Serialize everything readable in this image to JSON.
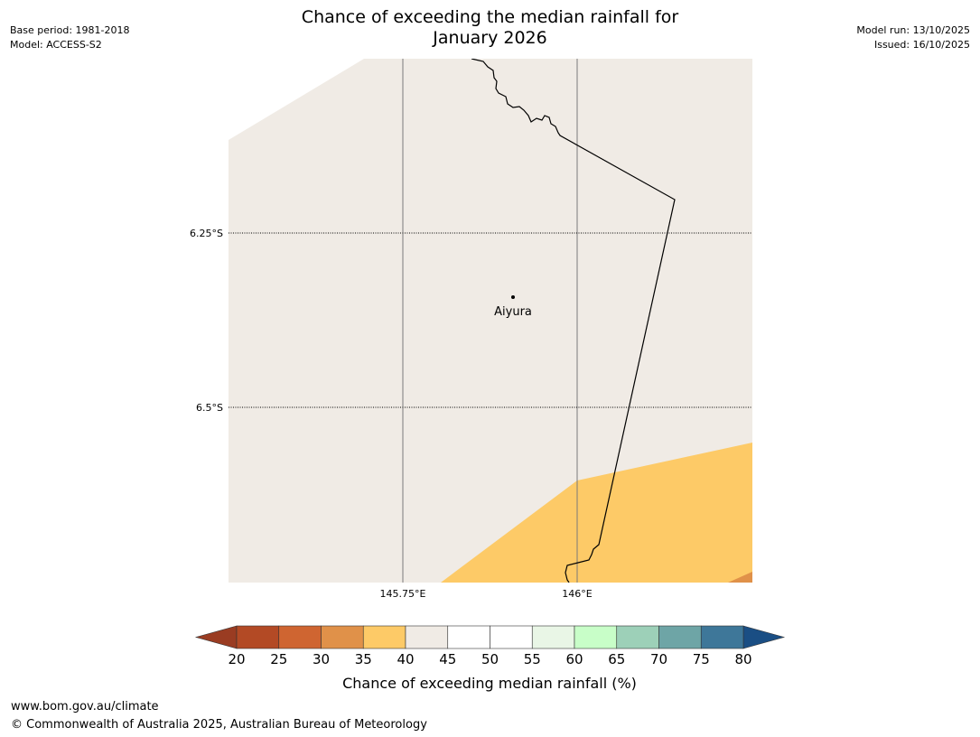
{
  "title_line1": "Chance of exceeding the median rainfall for",
  "title_line2": "January 2026",
  "header_left": {
    "base_period": "Base period: 1981-2018",
    "model": "Model: ACCESS-S2"
  },
  "header_right": {
    "model_run": "Model run: 13/10/2025",
    "issued": "Issued: 16/10/2025"
  },
  "map": {
    "latitude_labels": [
      "6.25°S",
      "6.5°S"
    ],
    "longitude_labels": [
      "145.75°E",
      "146°E"
    ],
    "place_label": "Aiyura",
    "colors": {
      "band_40_45": "#f0ebe5",
      "band_35_40": "#fdca67",
      "band_30_35": "#e09149",
      "border": "#000000"
    }
  },
  "colorbar": {
    "title": "Chance of exceeding median rainfall (%)",
    "ticks": [
      "20",
      "25",
      "30",
      "35",
      "40",
      "45",
      "50",
      "55",
      "60",
      "65",
      "70",
      "75",
      "80"
    ],
    "under_color": "#9a3c22",
    "over_color": "#1a4e84",
    "bins": [
      {
        "range": "20-25",
        "color": "#b34a25"
      },
      {
        "range": "25-30",
        "color": "#cf6531"
      },
      {
        "range": "30-35",
        "color": "#e09149"
      },
      {
        "range": "35-40",
        "color": "#fdca67"
      },
      {
        "range": "40-45",
        "color": "#f0ebe5"
      },
      {
        "range": "45-50",
        "color": "#ffffff"
      },
      {
        "range": "50-55",
        "color": "#ffffff"
      },
      {
        "range": "55-60",
        "color": "#e9f6e6"
      },
      {
        "range": "60-65",
        "color": "#c8fec8"
      },
      {
        "range": "65-70",
        "color": "#9dd0b8"
      },
      {
        "range": "70-75",
        "color": "#6ea5a6"
      },
      {
        "range": "75-80",
        "color": "#3e7799"
      }
    ]
  },
  "footer": {
    "url": "www.bom.gov.au/climate",
    "copyright": "© Commonwealth of Australia 2025, Australian Bureau of Meteorology"
  }
}
